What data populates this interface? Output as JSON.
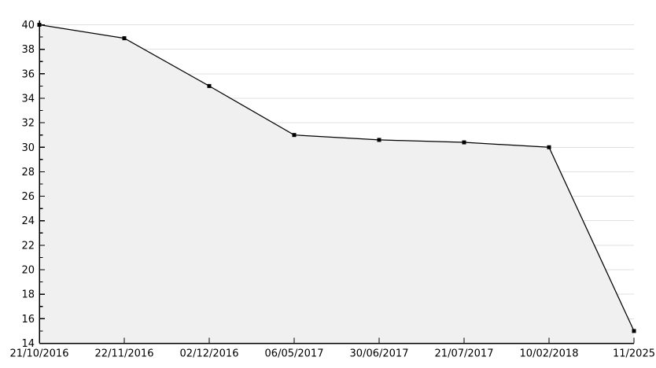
{
  "chart_data": {
    "type": "area",
    "title": "",
    "xlabel": "",
    "ylabel": "",
    "x": [
      "21/10/2016",
      "22/11/2016",
      "02/12/2016",
      "06/05/2017",
      "30/06/2017",
      "21/07/2017",
      "10/02/2018",
      "11/2025"
    ],
    "series": [
      {
        "name": "value",
        "values": [
          40,
          38.9,
          35,
          31,
          30.6,
          30.4,
          30,
          15
        ]
      }
    ],
    "ylim": [
      14,
      40
    ],
    "y_ticks": [
      14,
      16,
      18,
      20,
      22,
      24,
      26,
      28,
      30,
      32,
      34,
      36,
      38,
      40
    ],
    "y_minor_tick_step": 1,
    "y_major_tick_step": 2,
    "grid": "horizontal-only",
    "legend": "none",
    "marker": "square",
    "colors": {
      "line": "#000000",
      "marker": "#000000",
      "fill": "#f0f0f0",
      "grid": "#e0e0e0",
      "axis": "#000000",
      "label": "#000000",
      "background": "#ffffff"
    }
  }
}
